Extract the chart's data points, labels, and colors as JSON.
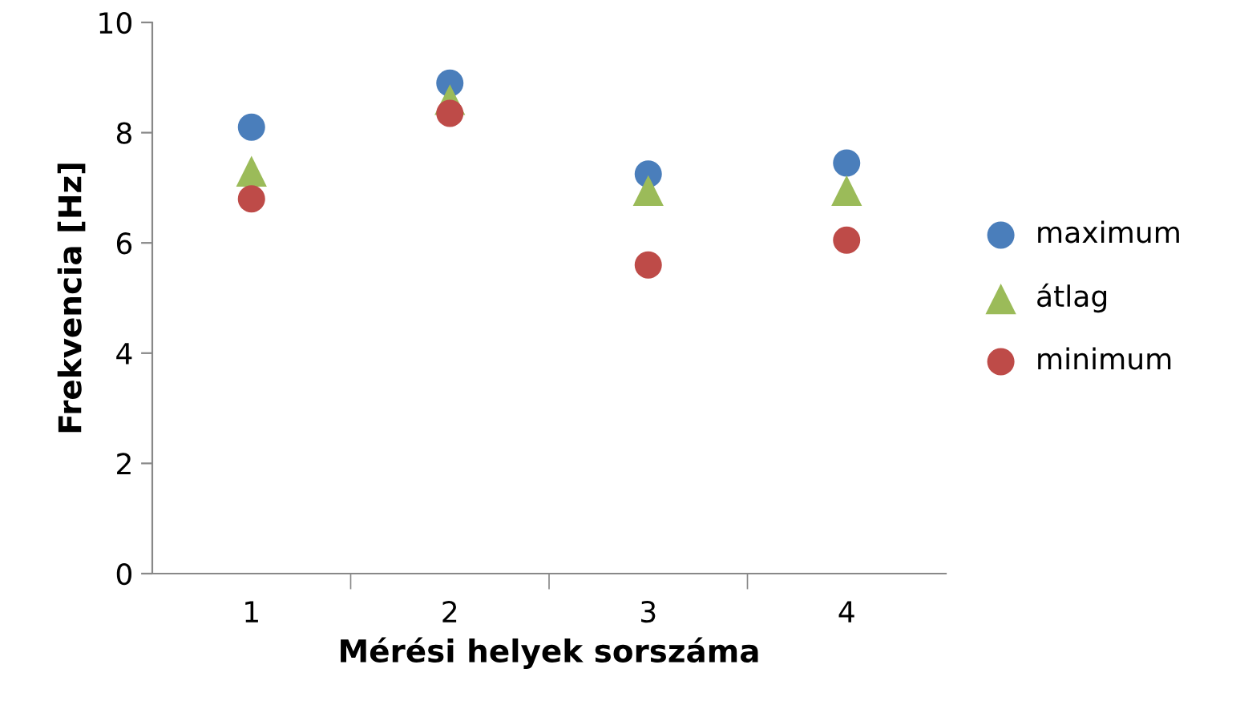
{
  "chart_data": {
    "type": "scatter",
    "xlabel": "Mérési helyek sorszáma",
    "ylabel": "Frekvencia [Hz]",
    "categories": [
      "1",
      "2",
      "3",
      "4"
    ],
    "ylim": [
      0,
      10
    ],
    "yticks": [
      0,
      2,
      4,
      6,
      8,
      10
    ],
    "grid": false,
    "legend": "right",
    "series": [
      {
        "name": "maximum",
        "color": "#4a7ebb",
        "marker": "circle",
        "values": [
          8.1,
          8.9,
          7.25,
          7.45
        ]
      },
      {
        "name": "átlag",
        "color": "#9bbb59",
        "marker": "triangle",
        "values": [
          7.3,
          8.6,
          6.95,
          6.95
        ]
      },
      {
        "name": "minimum",
        "color": "#be4b48",
        "marker": "circle",
        "values": [
          6.8,
          8.35,
          5.6,
          6.05
        ]
      }
    ]
  }
}
